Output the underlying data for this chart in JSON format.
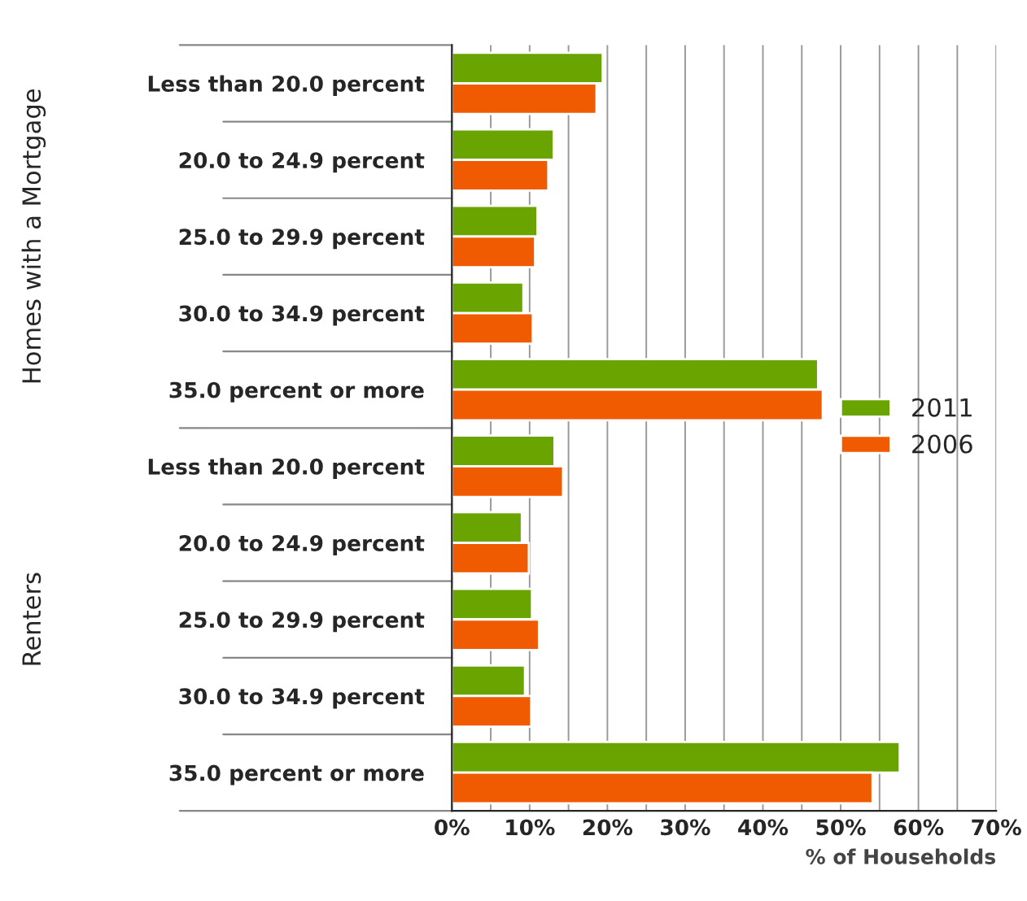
{
  "chart_data": {
    "type": "bar",
    "orientation": "horizontal",
    "categories": [
      "Less than 20.0 percent",
      "20.0 to 24.9 percent",
      "25.0 to 29.9 percent",
      "30.0 to 34.9 percent",
      "35.0 percent or more",
      "Less than 20.0 percent",
      "20.0 to 24.9 percent",
      "25.0 to 29.9 percent",
      "30.0 to 34.9 percent",
      "35.0 percent or more"
    ],
    "series": [
      {
        "name": "2011",
        "color": "#6aa400",
        "values": [
          19.4,
          13.1,
          11.0,
          9.2,
          47.1,
          13.2,
          9.0,
          10.3,
          9.4,
          57.6
        ]
      },
      {
        "name": "2006",
        "color": "#f05a00",
        "values": [
          18.6,
          12.4,
          10.7,
          10.4,
          47.7,
          14.3,
          9.9,
          11.2,
          10.2,
          54.1
        ]
      }
    ],
    "xlim": [
      0,
      70
    ],
    "xticks": [
      {
        "value": 0,
        "label": "0%"
      },
      {
        "value": 5,
        "label": null
      },
      {
        "value": 10,
        "label": "10%"
      },
      {
        "value": 15,
        "label": null
      },
      {
        "value": 20,
        "label": "20%"
      },
      {
        "value": 25,
        "label": null
      },
      {
        "value": 30,
        "label": "30%"
      },
      {
        "value": 35,
        "label": null
      },
      {
        "value": 40,
        "label": "40%"
      },
      {
        "value": 45,
        "label": null
      },
      {
        "value": 50,
        "label": "50%"
      },
      {
        "value": 55,
        "label": null
      },
      {
        "value": 60,
        "label": "60%"
      },
      {
        "value": 65,
        "label": null
      },
      {
        "value": 70,
        "label": "70%"
      }
    ],
    "xlabel": "% of Households",
    "annotations": [
      "Homes with a Mortgage",
      "Renters"
    ],
    "grid": "x",
    "legend": "right"
  }
}
